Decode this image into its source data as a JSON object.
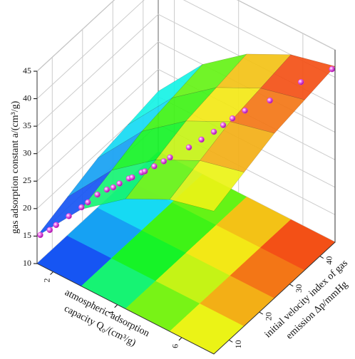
{
  "chart_data": {
    "type": "surface3d",
    "xlabel": [
      "atmospheric adsorption",
      "capacity Q₀/(cm³/g)"
    ],
    "ylabel": [
      "initial velocity index of gas",
      "emission Δp/mmHg"
    ],
    "zlabel": "gas adsorption constant a/(cm³/g)",
    "xlim": [
      1.5,
      7
    ],
    "xticks": [
      2,
      4,
      6
    ],
    "ylim": [
      5,
      45
    ],
    "yticks": [
      10,
      20,
      30,
      40
    ],
    "zlim": [
      10,
      45
    ],
    "zticks": [
      10,
      15,
      20,
      25,
      30,
      35,
      40,
      45
    ],
    "grid": true,
    "surface": {
      "x": [
        1.5,
        2.875,
        4.25,
        5.625,
        7
      ],
      "y": [
        5,
        15,
        25,
        35,
        45
      ],
      "z": [
        [
          15,
          17,
          19,
          20,
          21
        ],
        [
          24,
          26,
          28,
          29,
          30
        ],
        [
          30,
          32,
          34,
          35,
          36
        ],
        [
          34,
          36,
          38,
          39,
          40
        ],
        [
          36,
          38,
          40,
          41,
          42
        ]
      ]
    },
    "points": {
      "color": "#e040e0",
      "x": [
        1.6,
        1.8,
        2.0,
        2.3,
        2.6,
        2.8,
        3.0,
        3.2,
        3.4,
        3.5,
        3.7,
        3.8,
        4.0,
        4.1,
        4.3,
        4.5,
        4.6,
        5.0,
        5.2,
        5.4,
        5.5,
        5.6,
        5.8,
        6.2,
        6.6,
        7.0
      ],
      "y": [
        5,
        6,
        6,
        7,
        8,
        8,
        9,
        10,
        10,
        11,
        12,
        12,
        13,
        13,
        14,
        15,
        16,
        18,
        20,
        22,
        24,
        26,
        28,
        32,
        38,
        44
      ],
      "z": [
        15.5,
        16.5,
        18,
        20,
        22,
        23.5,
        25,
        26,
        27,
        27.5,
        28.5,
        29,
        30,
        30.5,
        31.5,
        32.5,
        33,
        35,
        36,
        37,
        37.5,
        38,
        39,
        40,
        41.5,
        42
      ]
    }
  }
}
